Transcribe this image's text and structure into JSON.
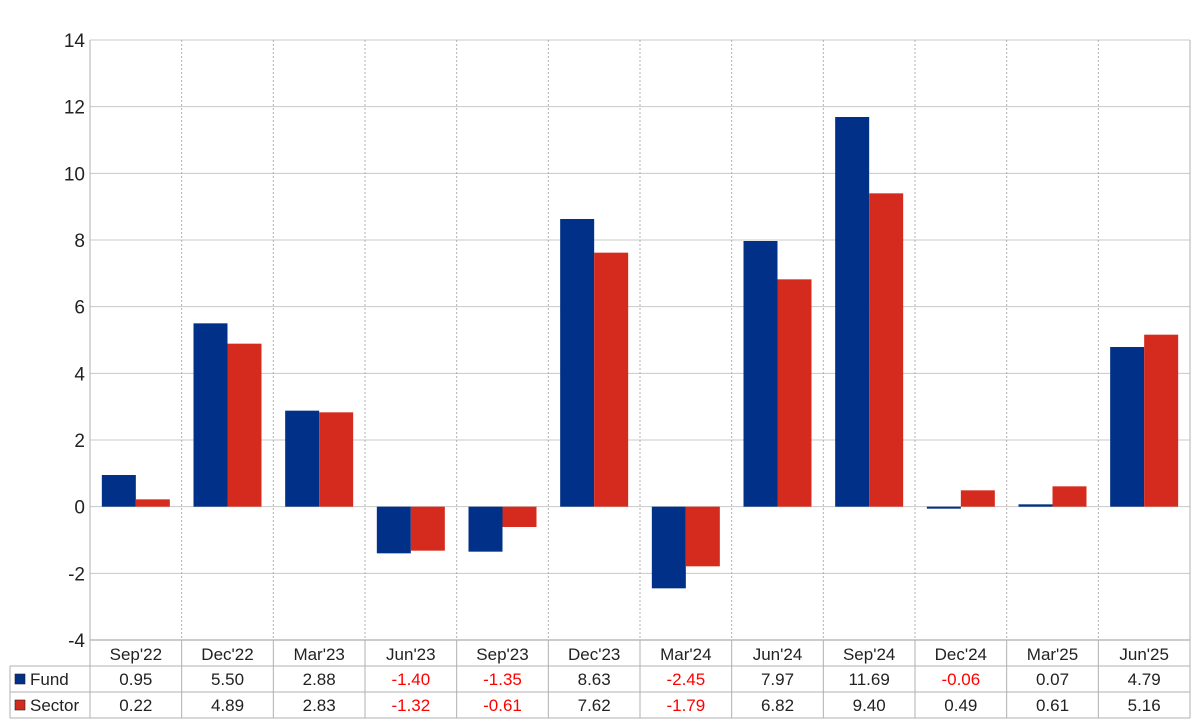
{
  "chart_data": {
    "type": "bar",
    "categories": [
      "Sep'22",
      "Dec'22",
      "Mar'23",
      "Jun'23",
      "Sep'23",
      "Dec'23",
      "Mar'24",
      "Jun'24",
      "Sep'24",
      "Dec'24",
      "Mar'25",
      "Jun'25"
    ],
    "series": [
      {
        "name": "Fund",
        "color": "#003087",
        "values": [
          0.95,
          5.5,
          2.88,
          -1.4,
          -1.35,
          8.63,
          -2.45,
          7.97,
          11.69,
          -0.06,
          0.07,
          4.79
        ],
        "labels": [
          "0.95",
          "5.50",
          "2.88",
          "-1.40",
          "-1.35",
          "8.63",
          "-2.45",
          "7.97",
          "11.69",
          "-0.06",
          "0.07",
          "4.79"
        ]
      },
      {
        "name": "Sector",
        "color": "#d52b1e",
        "values": [
          0.22,
          4.89,
          2.83,
          -1.32,
          -0.61,
          7.62,
          -1.79,
          6.82,
          9.4,
          0.49,
          0.61,
          5.16
        ],
        "labels": [
          "0.22",
          "4.89",
          "2.83",
          "-1.32",
          "-0.61",
          "7.62",
          "-1.79",
          "6.82",
          "9.40",
          "0.49",
          "0.61",
          "5.16"
        ]
      }
    ],
    "ylim": [
      -4,
      14
    ],
    "yticks": [
      "-4",
      "-2",
      "0",
      "2",
      "4",
      "6",
      "8",
      "10",
      "12",
      "14"
    ],
    "negative_color": "#ff0000",
    "grid": true,
    "legend": "table-rows-bottom"
  }
}
